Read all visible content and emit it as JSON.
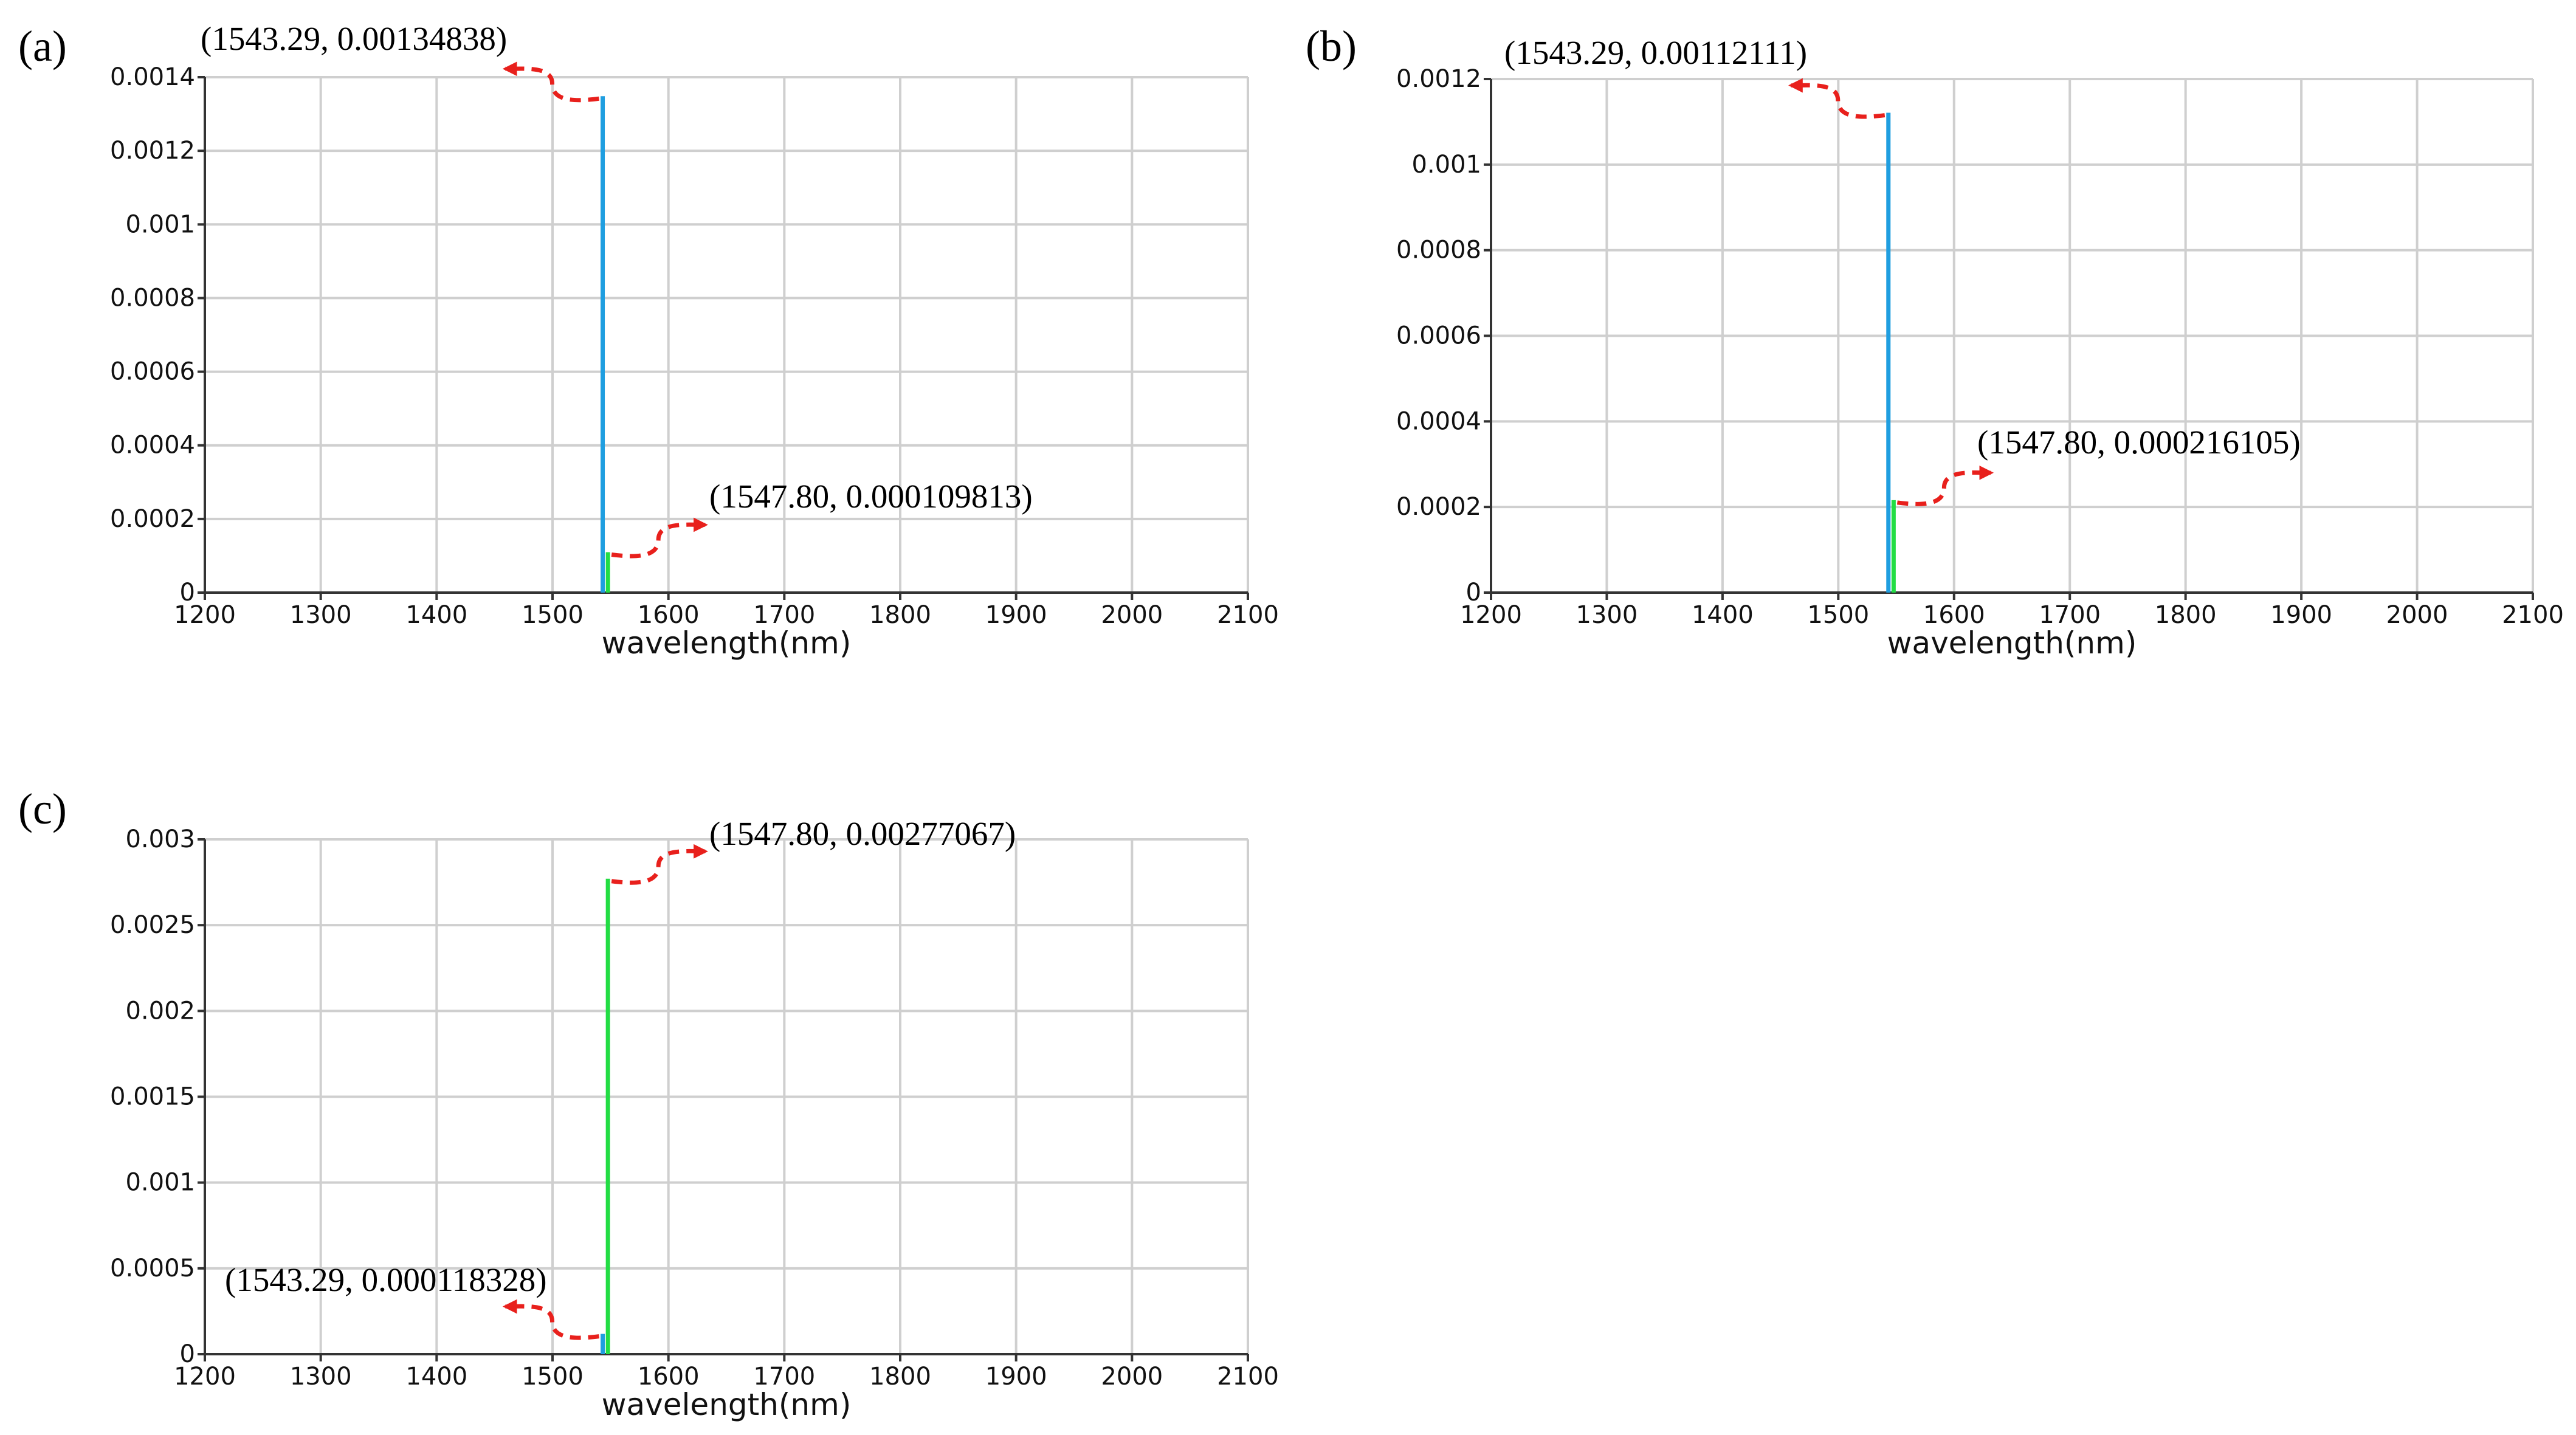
{
  "chart_data": [
    {
      "panel_label": "(a)",
      "type": "bar",
      "xlabel": "wavelength(nm)",
      "ylabel": "",
      "xlim": [
        1200,
        2100
      ],
      "ylim": [
        0,
        0.0014
      ],
      "x_ticks": [
        1200,
        1300,
        1400,
        1500,
        1600,
        1700,
        1800,
        1900,
        2000,
        2100
      ],
      "y_ticks": [
        0,
        0.0002,
        0.0004,
        0.0006,
        0.0008,
        0.001,
        0.0012,
        0.0014
      ],
      "y_tick_labels": [
        "0",
        "0.0002",
        "0.0004",
        "0.0006",
        "0.0008",
        "0.001",
        "0.0012",
        "0.0014"
      ],
      "grid": true,
      "series": [
        {
          "color": "#1f9ee0",
          "points": [
            {
              "x": 1543.29,
              "y": 0.00134838
            }
          ]
        },
        {
          "color": "#22dd44",
          "points": [
            {
              "x": 1547.8,
              "y": 0.000109813
            }
          ]
        }
      ],
      "annotations": [
        {
          "text": "(1543.29, 0.00134838)",
          "series": 0,
          "side": "left"
        },
        {
          "text": "(1547.80, 0.000109813)",
          "series": 1,
          "side": "right"
        }
      ]
    },
    {
      "panel_label": "(b)",
      "type": "bar",
      "xlabel": "wavelength(nm)",
      "ylabel": "",
      "xlim": [
        1200,
        2100
      ],
      "ylim": [
        0,
        0.0012
      ],
      "x_ticks": [
        1200,
        1300,
        1400,
        1500,
        1600,
        1700,
        1800,
        1900,
        2000,
        2100
      ],
      "y_ticks": [
        0,
        0.0002,
        0.0004,
        0.0006,
        0.0008,
        0.001,
        0.0012
      ],
      "y_tick_labels": [
        "0",
        "0.0002",
        "0.0004",
        "0.0006",
        "0.0008",
        "0.001",
        "0.0012"
      ],
      "grid": true,
      "series": [
        {
          "color": "#1f9ee0",
          "points": [
            {
              "x": 1543.29,
              "y": 0.00112111
            }
          ]
        },
        {
          "color": "#22dd44",
          "points": [
            {
              "x": 1547.8,
              "y": 0.000216105
            }
          ]
        }
      ],
      "annotations": [
        {
          "text": "(1543.29, 0.00112111)",
          "series": 0,
          "side": "left"
        },
        {
          "text": "(1547.80, 0.000216105)",
          "series": 1,
          "side": "right"
        }
      ]
    },
    {
      "panel_label": "(c)",
      "type": "bar",
      "xlabel": "wavelength(nm)",
      "ylabel": "",
      "xlim": [
        1200,
        2100
      ],
      "ylim": [
        0,
        0.003
      ],
      "x_ticks": [
        1200,
        1300,
        1400,
        1500,
        1600,
        1700,
        1800,
        1900,
        2000,
        2100
      ],
      "y_ticks": [
        0,
        0.0005,
        0.001,
        0.0015,
        0.002,
        0.0025,
        0.003
      ],
      "y_tick_labels": [
        "0",
        "0.0005",
        "0.001",
        "0.0015",
        "0.002",
        "0.0025",
        "0.003"
      ],
      "grid": true,
      "series": [
        {
          "color": "#1f9ee0",
          "points": [
            {
              "x": 1543.29,
              "y": 0.000118328
            }
          ]
        },
        {
          "color": "#22dd44",
          "points": [
            {
              "x": 1547.8,
              "y": 0.00277067
            }
          ]
        }
      ],
      "annotations": [
        {
          "text": "(1547.80, 0.00277067)",
          "series": 1,
          "side": "right"
        },
        {
          "text": "(1543.29, 0.000118328)",
          "series": 0,
          "side": "left"
        }
      ]
    }
  ],
  "colors": {
    "grid": "#cfcfcf",
    "axis": "#333333",
    "arrow": "#e8201c"
  }
}
